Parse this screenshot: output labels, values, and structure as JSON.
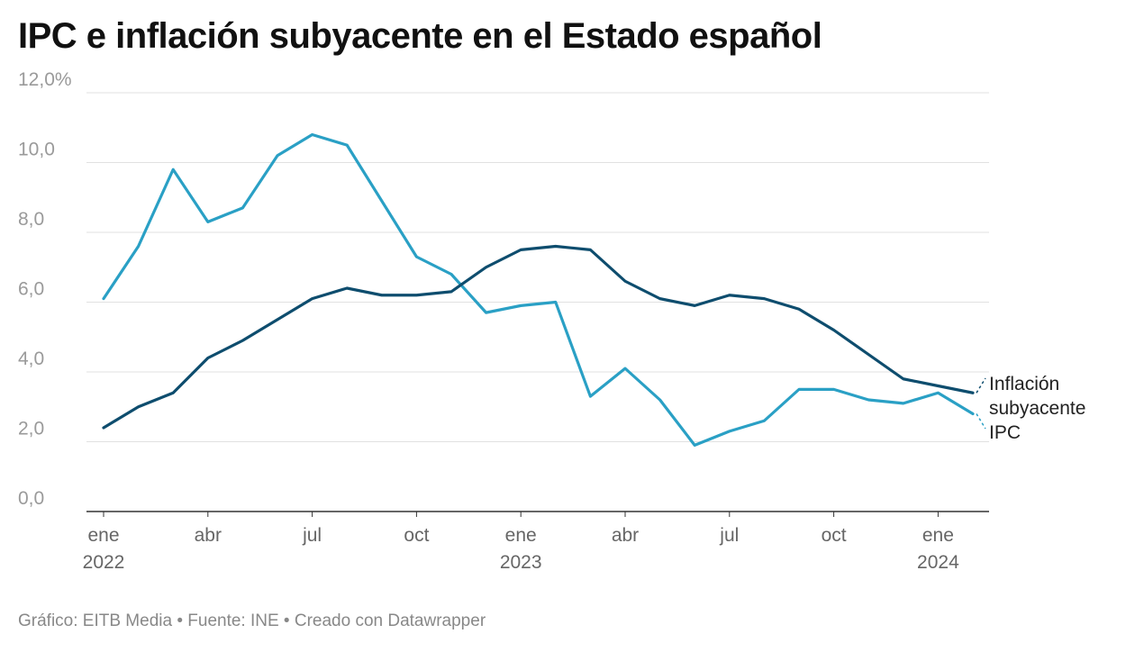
{
  "title": "IPC e inflación subyacente en el Estado español",
  "footer": {
    "text": "Gráfico: EITB Media • Fuente: INE • Creado con Datawrapper"
  },
  "chart_data": {
    "type": "line",
    "title": "IPC e inflación subyacente en el Estado español",
    "xlabel": "",
    "ylabel": "",
    "ylim": [
      0,
      12
    ],
    "grid": true,
    "y_ticks": [
      0,
      2,
      4,
      6,
      8,
      10,
      12
    ],
    "y_tick_labels": [
      "0,0",
      "2,0",
      "4,0",
      "6,0",
      "8,0",
      "10,0",
      "12,0%"
    ],
    "x": [
      "2022-01",
      "2022-02",
      "2022-03",
      "2022-04",
      "2022-05",
      "2022-06",
      "2022-07",
      "2022-08",
      "2022-09",
      "2022-10",
      "2022-11",
      "2022-12",
      "2023-01",
      "2023-02",
      "2023-03",
      "2023-04",
      "2023-05",
      "2023-06",
      "2023-07",
      "2023-08",
      "2023-09",
      "2023-10",
      "2023-11",
      "2023-12",
      "2024-01",
      "2024-02"
    ],
    "x_ticks": [
      {
        "index": 0,
        "label": "ene",
        "year": "2022"
      },
      {
        "index": 3,
        "label": "abr",
        "year": ""
      },
      {
        "index": 6,
        "label": "jul",
        "year": ""
      },
      {
        "index": 9,
        "label": "oct",
        "year": ""
      },
      {
        "index": 12,
        "label": "ene",
        "year": "2023"
      },
      {
        "index": 15,
        "label": "abr",
        "year": ""
      },
      {
        "index": 18,
        "label": "jul",
        "year": ""
      },
      {
        "index": 21,
        "label": "oct",
        "year": ""
      },
      {
        "index": 24,
        "label": "ene",
        "year": "2024"
      }
    ],
    "series": [
      {
        "name": "IPC",
        "label_lines": [
          "IPC"
        ],
        "color": "#2aa0c5",
        "values": [
          6.1,
          7.6,
          9.8,
          8.3,
          8.7,
          10.2,
          10.8,
          10.5,
          8.9,
          7.3,
          6.8,
          5.7,
          5.9,
          6.0,
          3.3,
          4.1,
          3.2,
          1.9,
          2.3,
          2.6,
          3.5,
          3.5,
          3.2,
          3.1,
          3.4,
          2.8
        ]
      },
      {
        "name": "Inflación subyacente",
        "label_lines": [
          "Inflación",
          "subyacente"
        ],
        "color": "#0e4d6e",
        "values": [
          2.4,
          3.0,
          3.4,
          4.4,
          4.9,
          5.5,
          6.1,
          6.4,
          6.2,
          6.2,
          6.3,
          7.0,
          7.5,
          7.6,
          7.5,
          6.6,
          6.1,
          5.9,
          6.2,
          6.1,
          5.8,
          5.2,
          4.5,
          3.8,
          3.6,
          3.4
        ]
      }
    ]
  }
}
